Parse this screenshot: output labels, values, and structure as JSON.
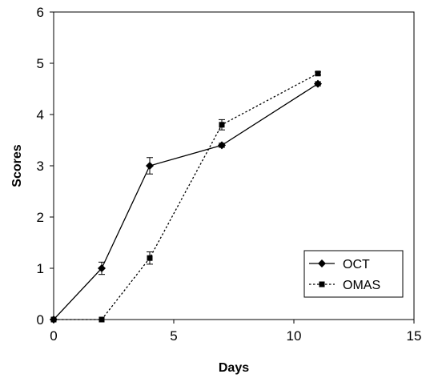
{
  "chart_data": {
    "type": "line",
    "title": "",
    "xlabel": "Days",
    "ylabel": "Scores",
    "xlim": [
      0,
      15
    ],
    "ylim": [
      0,
      6
    ],
    "x_ticks": [
      "0",
      "5",
      "10",
      "15"
    ],
    "y_ticks": [
      "0",
      "1",
      "2",
      "3",
      "4",
      "5",
      "6"
    ],
    "grid": false,
    "legend_position": "bottom-right",
    "series": [
      {
        "name": "OCT",
        "marker": "diamond",
        "line_style": "solid",
        "color": "#000000",
        "points": [
          {
            "x": 0,
            "y": 0,
            "err": 0
          },
          {
            "x": 2,
            "y": 1.0,
            "err": 0.12
          },
          {
            "x": 4,
            "y": 3.0,
            "err": 0.16
          },
          {
            "x": 7,
            "y": 3.4,
            "err": 0.04
          },
          {
            "x": 11,
            "y": 4.6,
            "err": 0.04
          }
        ]
      },
      {
        "name": "OMAS",
        "marker": "square",
        "line_style": "dotted",
        "color": "#000000",
        "points": [
          {
            "x": 0,
            "y": 0,
            "err": 0
          },
          {
            "x": 2,
            "y": 0,
            "err": 0
          },
          {
            "x": 4,
            "y": 1.2,
            "err": 0.12
          },
          {
            "x": 7,
            "y": 3.8,
            "err": 0.1
          },
          {
            "x": 11,
            "y": 4.8,
            "err": 0.03
          }
        ]
      }
    ]
  }
}
